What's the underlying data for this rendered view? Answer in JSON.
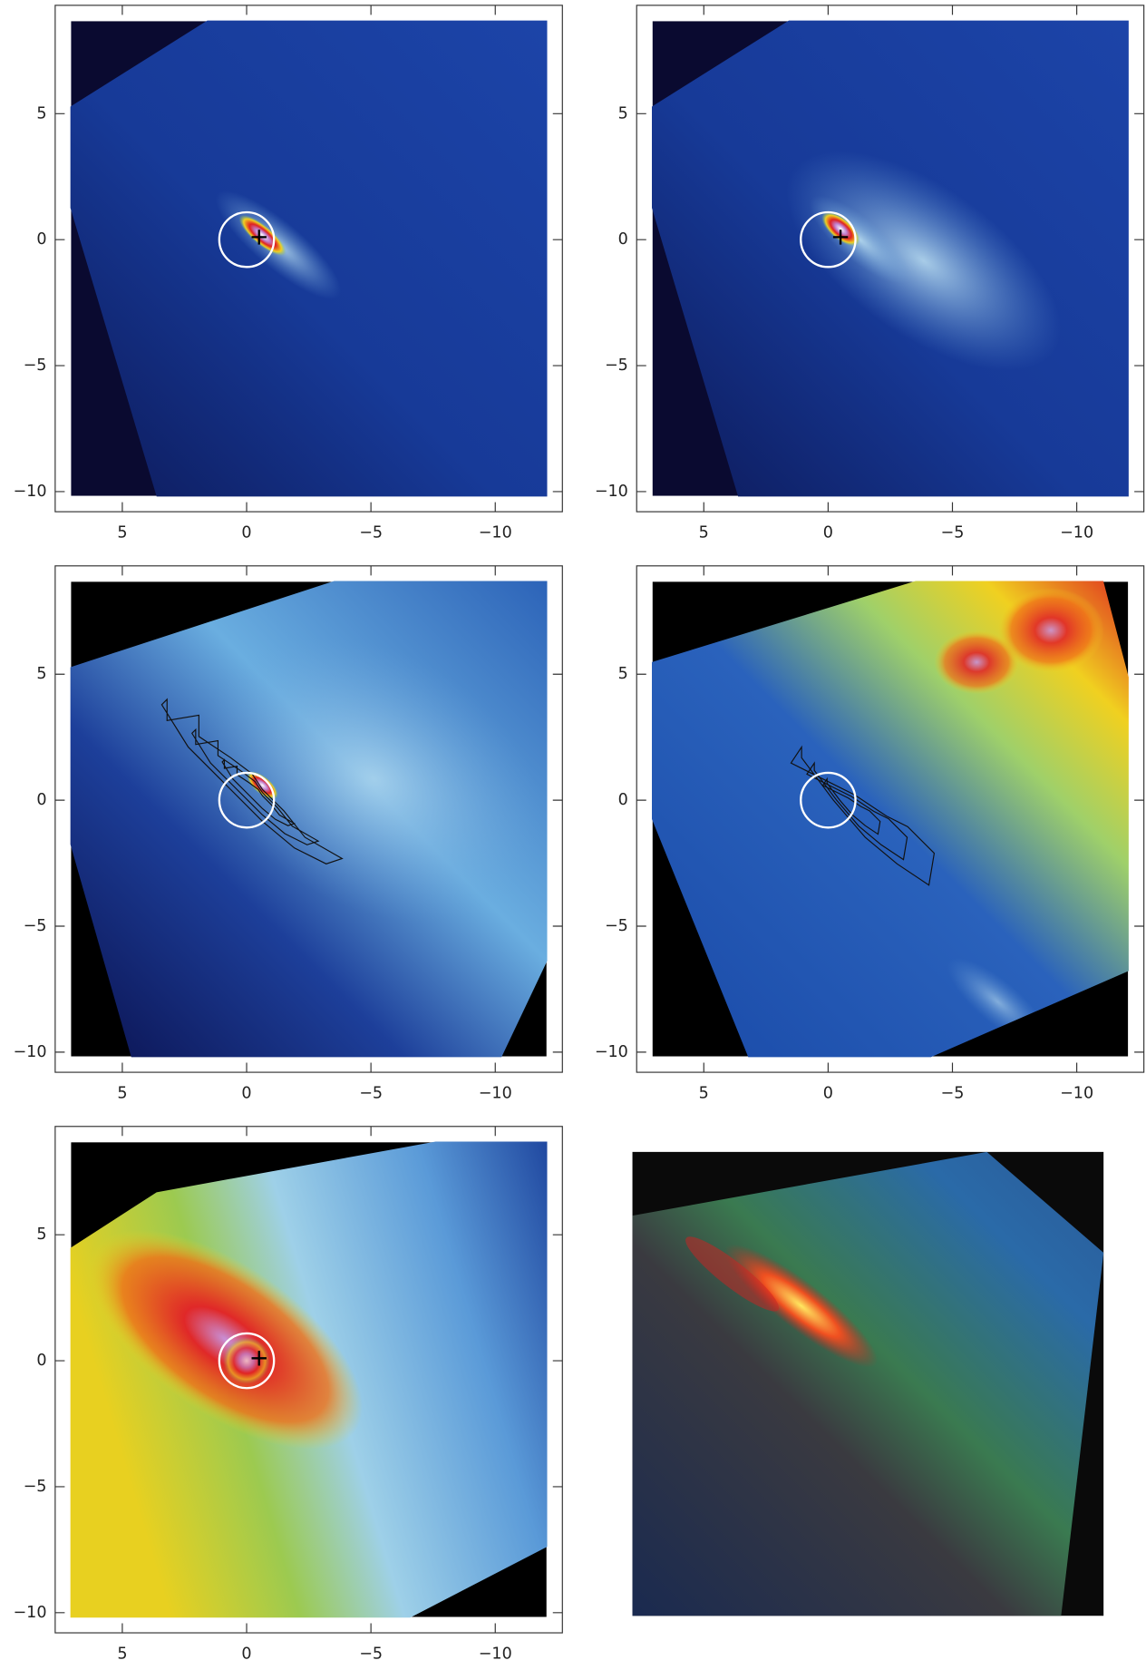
{
  "chart_data": [
    {
      "type": "image",
      "xlim": [
        7.7,
        -12.7
      ],
      "ylim": [
        -10.8,
        9.3
      ],
      "xticks": [
        5,
        0,
        {
          "value": -5,
          "label": "−5"
        },
        {
          "value": -10,
          "label": "−10"
        }
      ],
      "yticks": [
        {
          "value": -10,
          "label": "−10"
        },
        {
          "value": -5,
          "label": "−5"
        },
        0,
        5
      ],
      "circle": {
        "x": 0,
        "y": 0,
        "r": 1.1
      },
      "cross": {
        "x": -0.5,
        "y": 0.1
      }
    },
    {
      "type": "image",
      "xlim": [
        7.7,
        -12.7
      ],
      "ylim": [
        -10.8,
        9.3
      ],
      "xticks": [
        5,
        0,
        {
          "value": -5,
          "label": "−5"
        },
        {
          "value": -10,
          "label": "−10"
        }
      ],
      "yticks": [
        {
          "value": -10,
          "label": "−10"
        },
        {
          "value": -5,
          "label": "−5"
        },
        0,
        5
      ],
      "circle": {
        "x": 0,
        "y": 0,
        "r": 1.1
      },
      "cross": {
        "x": -0.5,
        "y": 0.1
      }
    },
    {
      "type": "image",
      "xlim": [
        7.7,
        -12.7
      ],
      "ylim": [
        -10.8,
        9.3
      ],
      "xticks": [
        5,
        0,
        {
          "value": -5,
          "label": "−5"
        },
        {
          "value": -10,
          "label": "−10"
        }
      ],
      "yticks": [
        {
          "value": -10,
          "label": "−10"
        },
        {
          "value": -5,
          "label": "−5"
        },
        0,
        5
      ],
      "circle": {
        "x": 0,
        "y": 0,
        "r": 1.1
      }
    },
    {
      "type": "image",
      "xlim": [
        7.7,
        -12.7
      ],
      "ylim": [
        -10.8,
        9.3
      ],
      "xticks": [
        5,
        0,
        {
          "value": -5,
          "label": "−5"
        },
        {
          "value": -10,
          "label": "−10"
        }
      ],
      "yticks": [
        {
          "value": -10,
          "label": "−10"
        },
        {
          "value": -5,
          "label": "−5"
        },
        0,
        5
      ],
      "circle": {
        "x": 0,
        "y": 0,
        "r": 1.1
      }
    },
    {
      "type": "image",
      "xlim": [
        7.7,
        -12.7
      ],
      "ylim": [
        -10.8,
        9.3
      ],
      "xticks": [
        5,
        0,
        {
          "value": -5,
          "label": "−5"
        },
        {
          "value": -10,
          "label": "−10"
        }
      ],
      "yticks": [
        {
          "value": -10,
          "label": "−10"
        },
        {
          "value": -5,
          "label": "−5"
        },
        0,
        5
      ],
      "circle": {
        "x": 0,
        "y": 0,
        "r": 1.1
      },
      "cross": {
        "x": -0.5,
        "y": 0.1
      }
    }
  ]
}
